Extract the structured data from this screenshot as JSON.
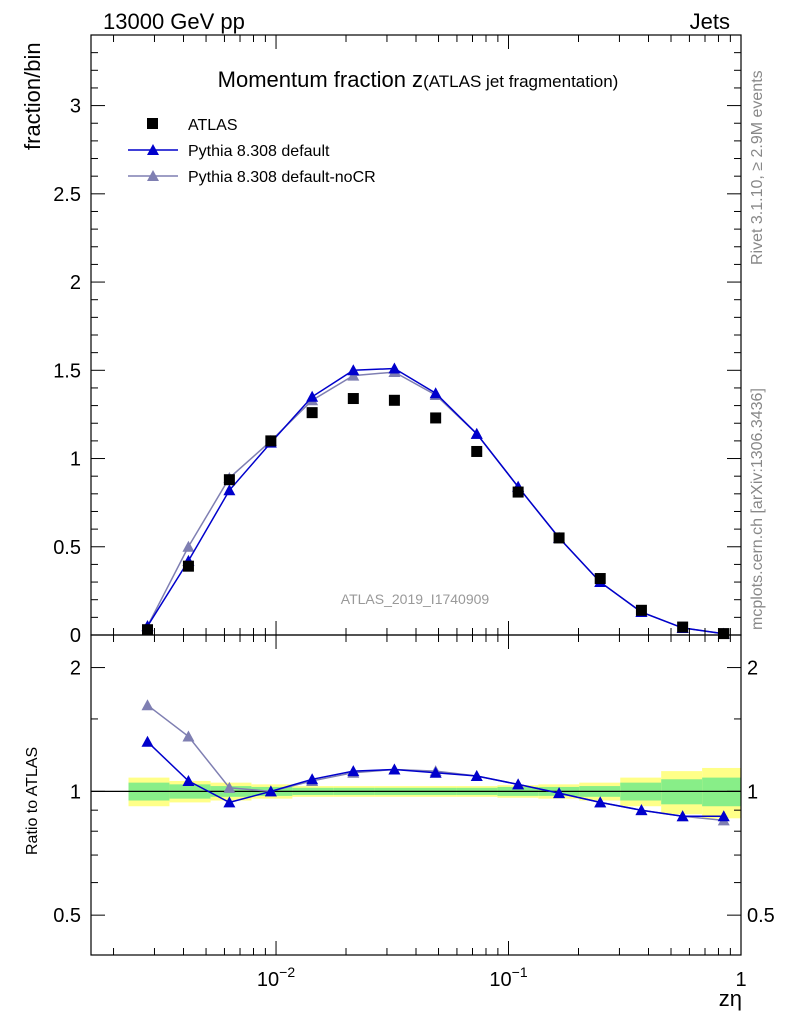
{
  "header": {
    "left": "13000 GeV pp",
    "right": "Jets"
  },
  "side_text": {
    "top": "Rivet 3.1.10, ≥ 2.9M events",
    "bottom": "mcplots.cern.ch [arXiv:1306.3436]"
  },
  "colors": {
    "atlas": "#000000",
    "default": "#0000cc",
    "nocr": "#7f7fb2",
    "band_inner": "#88ee88",
    "band_outer": "#ffff88"
  },
  "chart_data": [
    {
      "type": "scatter",
      "title_main": "Momentum fraction z",
      "title_sub": "(ATLAS jet fragmentation)",
      "ylabel": "fraction/bin",
      "xlabel": "zη",
      "xscale": "log",
      "xlim": [
        0.0016,
        1.0
      ],
      "ylim": [
        0,
        3.4
      ],
      "yticks": [
        0,
        0.5,
        1,
        1.5,
        2,
        2.5,
        3
      ],
      "ytick_labels": [
        "0",
        "0.5",
        "1",
        "1.5",
        "2",
        "2.5",
        "3"
      ],
      "xticks": [
        0.01,
        0.1,
        1
      ],
      "xtick_labels": [
        "10",
        "10",
        "1"
      ],
      "xtick_sups": [
        "−2",
        "−1",
        ""
      ],
      "legend": [
        "ATLAS",
        "Pythia 8.308 default",
        "Pythia 8.308 default-noCR"
      ],
      "watermark": "ATLAS_2019_I1740909",
      "x": [
        0.0028,
        0.0042,
        0.0063,
        0.0095,
        0.0143,
        0.0215,
        0.0323,
        0.0486,
        0.073,
        0.11,
        0.165,
        0.248,
        0.373,
        0.561,
        0.843
      ],
      "series": [
        {
          "name": "ATLAS",
          "values": [
            0.03,
            0.39,
            0.88,
            1.1,
            1.26,
            1.34,
            1.33,
            1.23,
            1.04,
            0.81,
            0.55,
            0.32,
            0.14,
            0.045,
            0.008
          ]
        },
        {
          "name": "Pythia 8.308 default",
          "values": [
            0.05,
            0.42,
            0.82,
            1.09,
            1.35,
            1.5,
            1.51,
            1.37,
            1.14,
            0.84,
            0.55,
            0.3,
            0.13,
            0.04,
            0.007
          ]
        },
        {
          "name": "Pythia 8.308 default-noCR",
          "values": [
            0.05,
            0.5,
            0.89,
            1.1,
            1.33,
            1.47,
            1.49,
            1.36,
            1.14,
            0.84,
            0.55,
            0.3,
            0.13,
            0.04,
            0.007
          ]
        }
      ]
    },
    {
      "type": "line",
      "ylabel": "Ratio to ATLAS",
      "yscale": "log",
      "ylim": [
        0.4,
        2.4
      ],
      "yticks": [
        0.5,
        1,
        2
      ],
      "ytick_labels": [
        "0.5",
        "1",
        "2"
      ],
      "bin_edges": [
        0.00232,
        0.00348,
        0.00523,
        0.00784,
        0.01176,
        0.01765,
        0.0265,
        0.0398,
        0.0597,
        0.0896,
        0.1344,
        0.2016,
        0.3024,
        0.4536,
        0.6804,
        1.0
      ],
      "band_inner": [
        0.05,
        0.04,
        0.03,
        0.025,
        0.02,
        0.02,
        0.02,
        0.02,
        0.02,
        0.025,
        0.025,
        0.03,
        0.05,
        0.07,
        0.08
      ],
      "band_outer": [
        0.08,
        0.06,
        0.05,
        0.04,
        0.03,
        0.03,
        0.03,
        0.03,
        0.03,
        0.035,
        0.04,
        0.05,
        0.08,
        0.12,
        0.14
      ],
      "series": [
        {
          "name": "Pythia 8.308 default",
          "values": [
            1.32,
            1.06,
            0.94,
            1.0,
            1.07,
            1.12,
            1.13,
            1.11,
            1.09,
            1.04,
            0.99,
            0.94,
            0.9,
            0.87,
            0.87
          ]
        },
        {
          "name": "Pythia 8.308 default-noCR",
          "values": [
            1.62,
            1.36,
            1.02,
            1.0,
            1.06,
            1.11,
            1.13,
            1.12,
            1.09,
            1.04,
            0.99,
            0.94,
            0.9,
            0.87,
            0.85
          ]
        }
      ]
    }
  ]
}
